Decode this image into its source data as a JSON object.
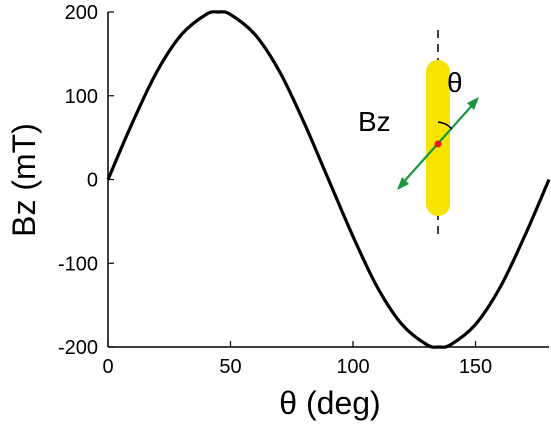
{
  "chart_data": {
    "type": "line",
    "xlabel": "θ  (deg)",
    "ylabel": "Bz  (mT)",
    "xlim": [
      0,
      180
    ],
    "ylim": [
      -200,
      200
    ],
    "x_ticks": [
      0,
      50,
      100,
      150
    ],
    "y_ticks": [
      -200,
      -100,
      0,
      100,
      200
    ],
    "series": [
      {
        "x": [
          0,
          10,
          20,
          30,
          40,
          45,
          50,
          60,
          70,
          80,
          90,
          100,
          110,
          120,
          130,
          135,
          140,
          150,
          160,
          170,
          180
        ],
        "y": [
          0,
          68,
          129,
          173,
          197,
          200,
          197,
          173,
          129,
          68,
          0,
          -68,
          -129,
          -173,
          -197,
          -200,
          -197,
          -173,
          -129,
          -68,
          0
        ]
      }
    ],
    "grid": false,
    "annotations": {
      "field_label": "Bz",
      "angle_label": "θ"
    },
    "colors": {
      "line": "#000000",
      "magnet": "#f5e400",
      "arrow": "#1a9641",
      "center_dot": "#e41a1c"
    }
  }
}
